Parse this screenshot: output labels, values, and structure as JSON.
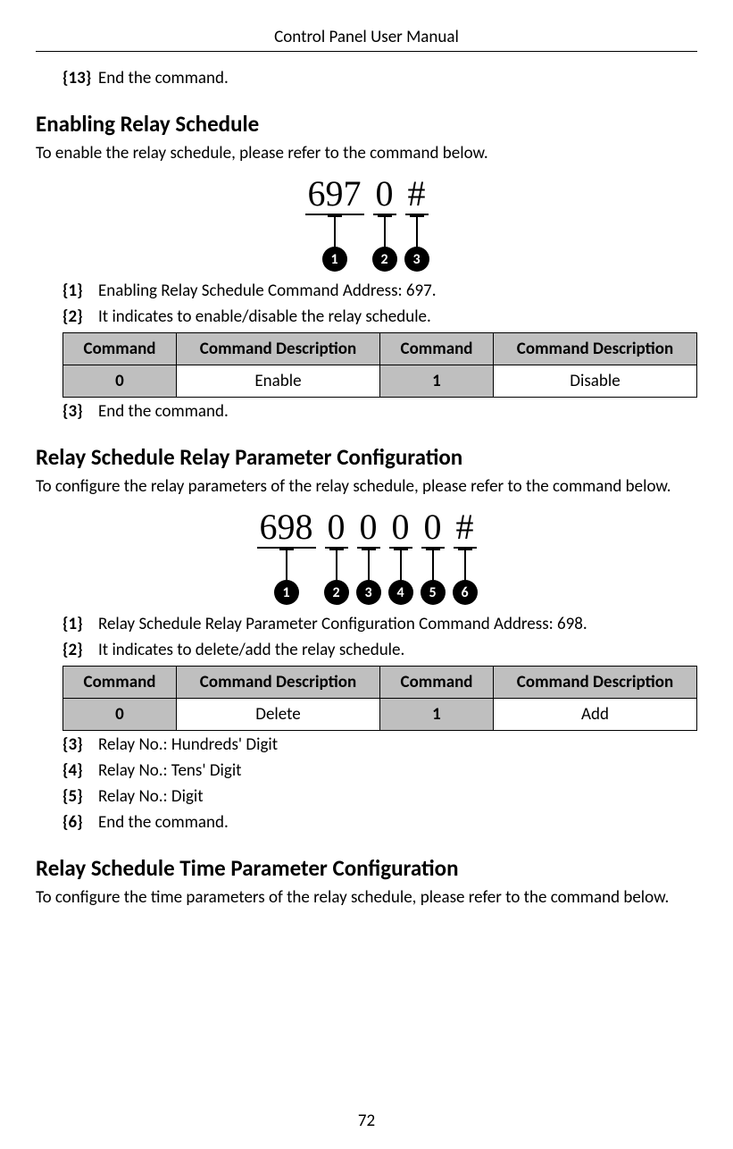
{
  "header": {
    "title": "Control Panel User Manual"
  },
  "pageNumber": "72",
  "top": {
    "item13": {
      "key": "{13}",
      "text": "End the command."
    }
  },
  "section1": {
    "heading": "Enabling Relay Schedule",
    "intro": "To enable the relay schedule, please refer to the command below.",
    "diagram": {
      "parts": [
        "697",
        "0",
        "#"
      ],
      "badges": [
        "1",
        "2",
        "3"
      ]
    },
    "items": {
      "i1": {
        "key": "{1}",
        "text": "Enabling Relay Schedule Command Address: 697."
      },
      "i2": {
        "key": "{2}",
        "text": "It indicates to enable/disable the relay schedule."
      },
      "i3": {
        "key": "{3}",
        "text": "End the command."
      }
    },
    "table": {
      "headers": [
        "Command",
        "Command Description",
        "Command",
        "Command Description"
      ],
      "row": {
        "c1": "0",
        "d1": "Enable",
        "c2": "1",
        "d2": "Disable"
      }
    }
  },
  "section2": {
    "heading": "Relay Schedule Relay Parameter Configuration",
    "intro": "To configure the relay parameters of the relay schedule, please refer to the command below.",
    "diagram": {
      "parts": [
        "698",
        "0",
        "0",
        "0",
        "0",
        "#"
      ],
      "badges": [
        "1",
        "2",
        "3",
        "4",
        "5",
        "6"
      ]
    },
    "items": {
      "i1": {
        "key": "{1}",
        "text": "Relay Schedule Relay Parameter Configuration Command Address: 698."
      },
      "i2": {
        "key": "{2}",
        "text": "It indicates to delete/add the relay schedule."
      },
      "i3": {
        "key": "{3}",
        "text": "Relay No.: Hundreds' Digit"
      },
      "i4": {
        "key": "{4}",
        "text": "Relay No.: Tens' Digit"
      },
      "i5": {
        "key": "{5}",
        "text": "Relay No.: Digit"
      },
      "i6": {
        "key": "{6}",
        "text": "End the command."
      }
    },
    "table": {
      "headers": [
        "Command",
        "Command Description",
        "Command",
        "Command Description"
      ],
      "row": {
        "c1": "0",
        "d1": "Delete",
        "c2": "1",
        "d2": "Add"
      }
    }
  },
  "section3": {
    "heading": "Relay Schedule Time Parameter Configuration",
    "intro": "To configure the time parameters of the relay schedule, please refer to the command below."
  }
}
